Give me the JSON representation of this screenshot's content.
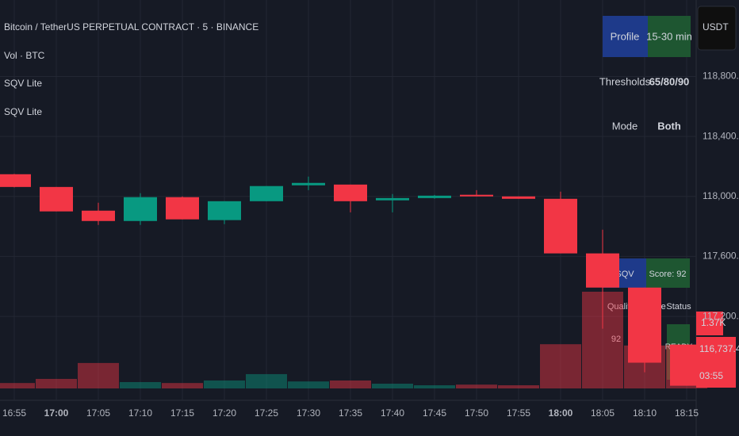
{
  "chart_data": {
    "type": "candlestick",
    "title": "Bitcoin / TetherUS PERPETUAL CONTRACT · 5 · BINANCE",
    "indicators": [
      "Vol · BTC",
      "SQV Lite",
      "SQV Lite"
    ],
    "currency": "USDT",
    "categories": [
      "16:55",
      "17:00",
      "17:05",
      "17:10",
      "17:15",
      "17:20",
      "17:25",
      "17:30",
      "17:35",
      "17:40",
      "17:45",
      "17:50",
      "17:55",
      "18:00",
      "18:05",
      "18:10",
      "18:15"
    ],
    "open": [
      118148,
      118063,
      117905,
      117836,
      117995,
      117842,
      117968,
      118074,
      118079,
      117974,
      117989,
      118011,
      118000,
      117984,
      117620,
      117392,
      117012
    ],
    "high": [
      118150,
      118063,
      117958,
      118021,
      118000,
      117968,
      118069,
      118132,
      118079,
      118016,
      118010,
      118042,
      118000,
      118032,
      117778,
      117392,
      117012
    ],
    "low": [
      118060,
      117900,
      117810,
      117810,
      117847,
      117815,
      117968,
      118042,
      117894,
      117894,
      117985,
      118000,
      117984,
      117620,
      117118,
      116827,
      116737.4
    ],
    "close": [
      118063,
      117900,
      117836,
      117995,
      117847,
      117968,
      118069,
      118090,
      117968,
      117989,
      118005,
      118000,
      117984,
      117620,
      117392,
      116891,
      116737.4
    ],
    "volume": [
      170,
      300,
      800,
      200,
      170,
      250,
      450,
      220,
      250,
      150,
      100,
      120,
      100,
      1390,
      3040,
      1350,
      1370
    ],
    "volume_label": {
      "value": 1370,
      "label": "1.37K"
    },
    "last_price": {
      "value": 116737.4,
      "label": "116,737.4"
    },
    "countdown": "03:55",
    "up_color": "#089981",
    "down_color": "#f23645",
    "ylim": [
      116640,
      119310
    ],
    "yticks": [
      {
        "value": 117200,
        "label": "117,200.0"
      },
      {
        "value": 117600,
        "label": "117,600.0"
      },
      {
        "value": 118000,
        "label": "118,000.0"
      },
      {
        "value": 118400,
        "label": "118,400.0"
      },
      {
        "value": 118800,
        "label": "118,800.0"
      }
    ],
    "grid": true
  },
  "panel_top": {
    "rows": [
      [
        "Profile",
        "15-30 min"
      ],
      [
        "Thresholds",
        "65/80/90"
      ],
      [
        "Mode",
        "Both"
      ]
    ]
  },
  "panel_bottom": {
    "rows": [
      [
        "SQV",
        "Score: 92"
      ],
      [
        "Quality",
        "Mode",
        "Status"
      ],
      [
        "92",
        "READY"
      ]
    ]
  }
}
